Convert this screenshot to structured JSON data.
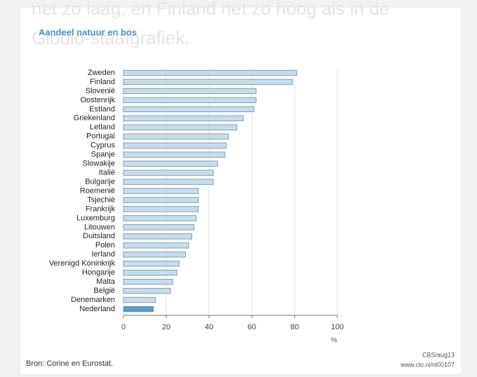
{
  "intro_text": [
    "net zo laag, en Finland net zo hoog als in de",
    "Globio-staafgrafiek."
  ],
  "chart_data": {
    "type": "hbar",
    "title": "Aandeel natuur en bos",
    "categories": [
      "Zweden",
      "Finland",
      "Slovenië",
      "Oostenrijk",
      "Estland",
      "Griekenland",
      "Letland",
      "Portugal",
      "Cyprus",
      "Spanje",
      "Slowakije",
      "Italië",
      "Bulgarije",
      "Roemenië",
      "Tsjechië",
      "Frankrijk",
      "Luxemburg",
      "Litouwen",
      "Duitsland",
      "Polen",
      "Ierland",
      "Verenigd Koninkrijk",
      "Hongarije",
      "Malta",
      "België",
      "Denemarken",
      "Nederland"
    ],
    "values": [
      81,
      79,
      62,
      62,
      61,
      56,
      53,
      49,
      48,
      47.5,
      44,
      42,
      42,
      35,
      35,
      35,
      34,
      33,
      32,
      30.5,
      29,
      26,
      25,
      23,
      22,
      15,
      14
    ],
    "colors": [
      "#c6ddec",
      "#c6ddec",
      "#c6ddec",
      "#c6ddec",
      "#c6ddec",
      "#c6ddec",
      "#c6ddec",
      "#c6ddec",
      "#c6ddec",
      "#c6ddec",
      "#c6ddec",
      "#c6ddec",
      "#c6ddec",
      "#c6ddec",
      "#c6ddec",
      "#c6ddec",
      "#c6ddec",
      "#c6ddec",
      "#c6ddec",
      "#c6ddec",
      "#c6ddec",
      "#c6ddec",
      "#c6ddec",
      "#c6ddec",
      "#c6ddec",
      "#c6ddec",
      "#5d9cc2"
    ],
    "xlim": [
      0,
      100
    ],
    "xticks": [
      0,
      20,
      40,
      60,
      80,
      100
    ],
    "x_label": "%",
    "grid": true,
    "source": "Bron: Corine en Eurostat.",
    "credit": "CBS/aug13",
    "url": "www.clo.nl/nl00107"
  }
}
